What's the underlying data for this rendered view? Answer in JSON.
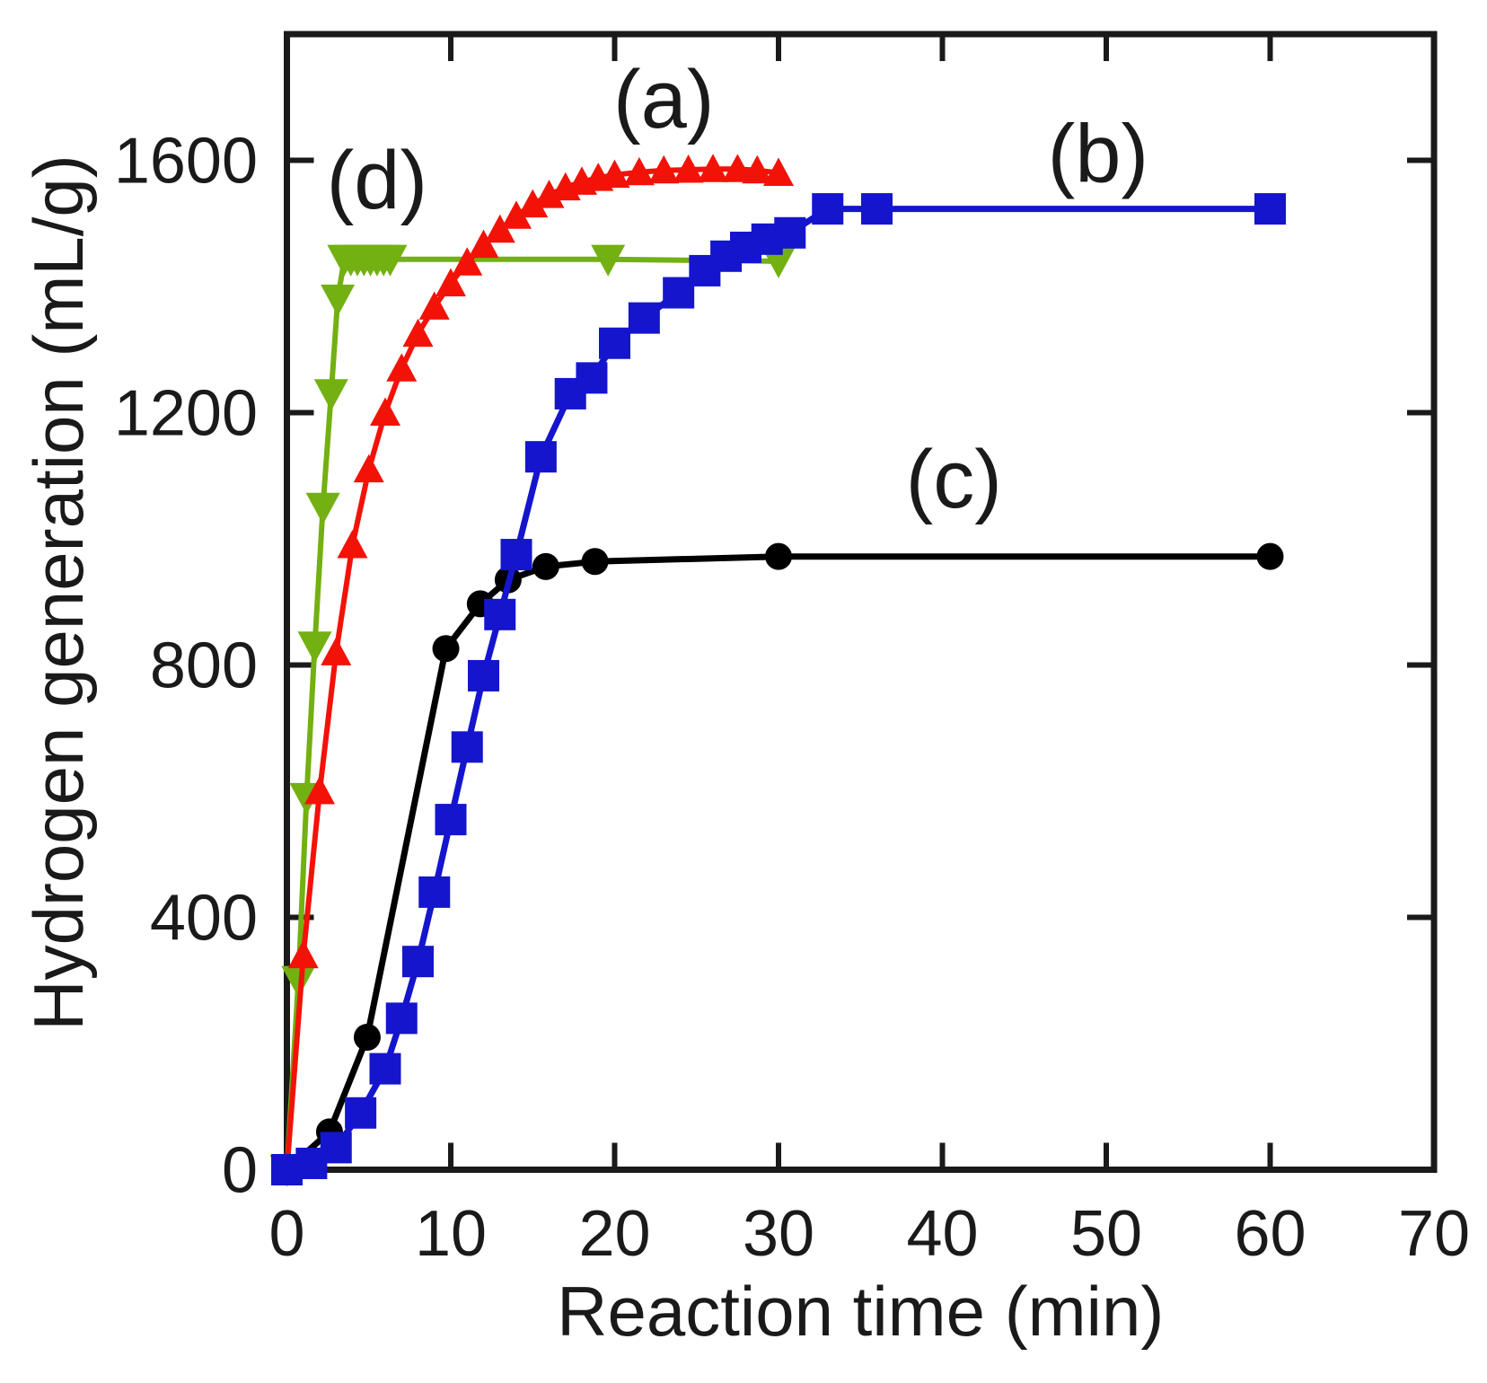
{
  "figure": {
    "background": "#ffffff",
    "axis_color": "#1a1a1a",
    "text_color": "#1a1a1a"
  },
  "chart_data": {
    "type": "line",
    "title": "",
    "xlabel": "Reaction time (min)",
    "ylabel": "Hydrogen generation (mL/g)",
    "xlim": [
      0,
      70
    ],
    "ylim": [
      0,
      1800
    ],
    "xticks": {
      "values": [
        0,
        10,
        20,
        30,
        40,
        50,
        60,
        70
      ],
      "labels": [
        "0",
        "10",
        "20",
        "30",
        "40",
        "50",
        "60",
        "70"
      ]
    },
    "yticks": {
      "values": [
        0,
        400,
        800,
        1200,
        1600
      ],
      "labels": [
        "0",
        "400",
        "800",
        "1200",
        "1600"
      ]
    },
    "grid": false,
    "legend_position": "inline-annotations",
    "draw_order": [
      "c",
      "d",
      "a",
      "b"
    ],
    "series": [
      {
        "id": "a",
        "label": "(a)",
        "color": "#f31208",
        "marker": "triangle-up",
        "marker_size": 34,
        "line_width": 6,
        "skip_first_marker": true,
        "points": [
          [
            0,
            0
          ],
          [
            1,
            340
          ],
          [
            2,
            600
          ],
          [
            3,
            820
          ],
          [
            4,
            990
          ],
          [
            5,
            1110
          ],
          [
            6,
            1200
          ],
          [
            7,
            1270
          ],
          [
            8,
            1325
          ],
          [
            9,
            1368
          ],
          [
            10,
            1405
          ],
          [
            11,
            1438
          ],
          [
            12,
            1466
          ],
          [
            13,
            1490
          ],
          [
            14,
            1512
          ],
          [
            15,
            1530
          ],
          [
            16,
            1545
          ],
          [
            17,
            1557
          ],
          [
            18,
            1566
          ],
          [
            19,
            1572
          ],
          [
            20,
            1577
          ],
          [
            21.5,
            1581
          ],
          [
            23,
            1584
          ],
          [
            24.5,
            1585
          ],
          [
            26,
            1586
          ],
          [
            27.5,
            1586
          ],
          [
            28.7,
            1584
          ],
          [
            30,
            1580
          ]
        ]
      },
      {
        "id": "b",
        "label": "(b)",
        "color": "#1515cd",
        "marker": "square",
        "marker_size": 35,
        "line_width": 7,
        "skip_first_marker": false,
        "points": [
          [
            0,
            0
          ],
          [
            1.5,
            10
          ],
          [
            3,
            35
          ],
          [
            4.5,
            90
          ],
          [
            6,
            160
          ],
          [
            7,
            240
          ],
          [
            8,
            330
          ],
          [
            9,
            440
          ],
          [
            10,
            555
          ],
          [
            11,
            670
          ],
          [
            12,
            783
          ],
          [
            13,
            880
          ],
          [
            14,
            975
          ],
          [
            15.5,
            1130
          ],
          [
            17.3,
            1230
          ],
          [
            18.6,
            1255
          ],
          [
            20,
            1310
          ],
          [
            21.8,
            1350
          ],
          [
            23.9,
            1390
          ],
          [
            25.5,
            1425
          ],
          [
            26.8,
            1448
          ],
          [
            28,
            1462
          ],
          [
            29.3,
            1475
          ],
          [
            30.7,
            1485
          ],
          [
            33,
            1523
          ],
          [
            36,
            1523
          ],
          [
            60,
            1523
          ]
        ]
      },
      {
        "id": "c",
        "label": "(c)",
        "color": "#000000",
        "marker": "circle",
        "marker_size": 30,
        "line_width": 7,
        "skip_first_marker": true,
        "points": [
          [
            0,
            0
          ],
          [
            2.6,
            60
          ],
          [
            4.9,
            210
          ],
          [
            9.7,
            826
          ],
          [
            11.8,
            897
          ],
          [
            13.5,
            935
          ],
          [
            15.8,
            956
          ],
          [
            18.8,
            964
          ],
          [
            30,
            972
          ],
          [
            60,
            972
          ]
        ]
      },
      {
        "id": "d",
        "label": "(d)",
        "color": "#73b011",
        "marker": "triangle-down",
        "marker_size": 38,
        "line_width": 6,
        "skip_first_marker": false,
        "points": [
          [
            0,
            0
          ],
          [
            0.7,
            300
          ],
          [
            1.2,
            590
          ],
          [
            1.7,
            830
          ],
          [
            2.2,
            1050
          ],
          [
            2.7,
            1230
          ],
          [
            3.1,
            1380
          ],
          [
            3.5,
            1443
          ],
          [
            3.9,
            1443
          ],
          [
            4.3,
            1443
          ],
          [
            4.7,
            1443
          ],
          [
            5.1,
            1443
          ],
          [
            5.5,
            1443
          ],
          [
            5.9,
            1443
          ],
          [
            6.3,
            1443
          ],
          [
            19.6,
            1443
          ],
          [
            30,
            1440
          ]
        ]
      }
    ],
    "annotations": [
      {
        "text": "(a)",
        "x": 23.0,
        "y": 1652,
        "series": "a"
      },
      {
        "text": "(b)",
        "x": 49.5,
        "y": 1566,
        "series": "b"
      },
      {
        "text": "(c)",
        "x": 40.7,
        "y": 1050,
        "series": "c"
      },
      {
        "text": "(d)",
        "x": 5.5,
        "y": 1524,
        "series": "d"
      }
    ]
  }
}
